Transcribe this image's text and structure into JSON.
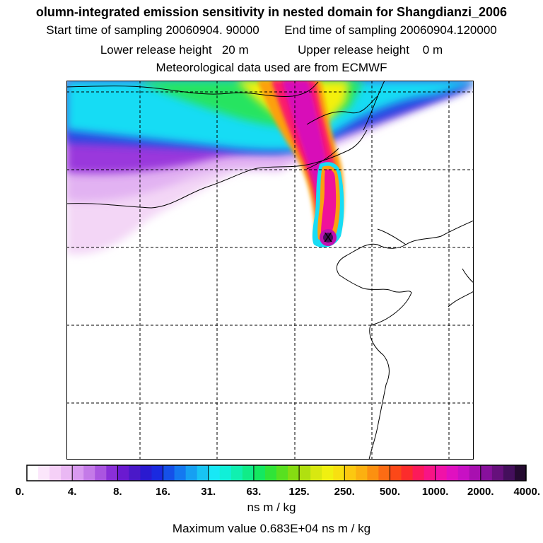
{
  "header": {
    "title": "olumn-integrated emission sensitivity in nested domain for Shangdianzi_2006",
    "start_time": "Start time of sampling 20060904. 90000",
    "end_time": "End time of sampling 20060904.120000",
    "lower_release": "Lower release height   20 m",
    "upper_release": "Upper release height    0 m",
    "met_data": "Meteorological data used are from ECMWF"
  },
  "colorbar": {
    "tick_labels": [
      "0.",
      "4.",
      "8.",
      "16.",
      "31.",
      "63.",
      "125.",
      "250.",
      "500.",
      "1000.",
      "2000.",
      "4000."
    ],
    "colors": [
      "#ffffff",
      "#fbe6fb",
      "#f5d0f7",
      "#eab8f4",
      "#d99af0",
      "#c47ae8",
      "#aa55e0",
      "#8a2fd8",
      "#6a1ad0",
      "#4a18c8",
      "#2a1ad0",
      "#1a2ae0",
      "#1550e8",
      "#1478f0",
      "#16a0f2",
      "#18c4f4",
      "#18e8f6",
      "#10f0d8",
      "#10f0b0",
      "#10ec88",
      "#14e860",
      "#30e438",
      "#58e020",
      "#86dc12",
      "#b0e010",
      "#d8e810",
      "#f0f010",
      "#f8e010",
      "#fcc810",
      "#fcb010",
      "#fc9010",
      "#fc6c14",
      "#fc4818",
      "#fc2c2c",
      "#fc1a5a",
      "#f81486",
      "#f012a8",
      "#e010c0",
      "#c810c4",
      "#a810b0",
      "#88109c",
      "#66107c",
      "#440f5c",
      "#240a30"
    ],
    "units": "ns m / kg"
  },
  "footer": {
    "maximum_value": "Maximum value  0.683E+04 ns m / kg"
  },
  "map": {
    "release_site_marker": "X"
  }
}
